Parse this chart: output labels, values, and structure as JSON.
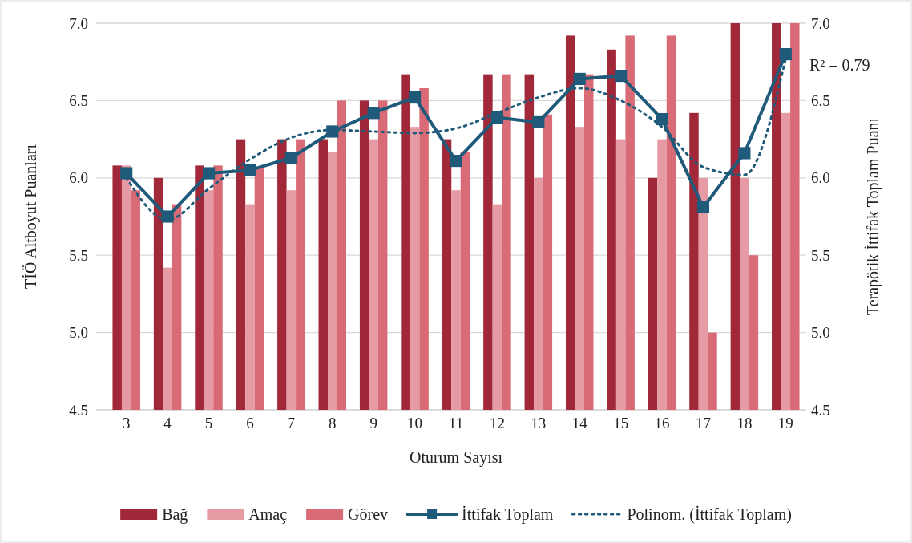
{
  "chart_data": {
    "type": "bar",
    "xlabel": "Oturum Sayısı",
    "ylabel": "TİÖ Altboyut Puanları",
    "y2label": "Terapötik İttifak Toplam Puanı",
    "categories": [
      "3",
      "4",
      "5",
      "6",
      "7",
      "8",
      "9",
      "10",
      "11",
      "12",
      "13",
      "14",
      "15",
      "16",
      "17",
      "18",
      "19"
    ],
    "series": [
      {
        "name": "Bağ",
        "color": "#a12838",
        "values": [
          6.08,
          6.0,
          6.08,
          6.25,
          6.25,
          6.25,
          6.5,
          6.67,
          6.25,
          6.67,
          6.67,
          6.92,
          6.83,
          6.0,
          6.42,
          7.0,
          7.0
        ]
      },
      {
        "name": "Amaç",
        "color": "#e69aa3",
        "values": [
          6.08,
          5.42,
          5.92,
          5.83,
          5.92,
          6.17,
          6.25,
          6.33,
          5.92,
          5.83,
          6.0,
          6.33,
          6.25,
          6.25,
          6.0,
          6.0,
          6.42
        ]
      },
      {
        "name": "Görev",
        "color": "#d96b77",
        "values": [
          5.92,
          5.83,
          6.08,
          6.07,
          6.25,
          6.5,
          6.5,
          6.58,
          6.17,
          6.67,
          6.41,
          6.67,
          6.92,
          6.92,
          5.0,
          5.5,
          7.0
        ]
      },
      {
        "name": "İttifak Toplam",
        "type": "line",
        "axis": "y2",
        "marker": "square",
        "line_style": "solid",
        "color": "#1f5a7a",
        "values": [
          6.03,
          5.75,
          6.03,
          6.05,
          6.13,
          6.3,
          6.42,
          6.52,
          6.11,
          6.39,
          6.36,
          6.64,
          6.66,
          6.38,
          5.81,
          6.16,
          6.8
        ]
      },
      {
        "name": "Polinom. (İttifak Toplam)",
        "type": "line",
        "axis": "y2",
        "marker": "none",
        "line_style": "dotted",
        "color": "#1f5a7a",
        "values": [
          6.0,
          5.73,
          5.93,
          6.12,
          6.26,
          6.31,
          6.3,
          6.29,
          6.32,
          6.42,
          6.52,
          6.58,
          6.5,
          6.33,
          6.07,
          6.02,
          6.77
        ]
      }
    ],
    "ylim": [
      4.5,
      7.0
    ],
    "yticks": [
      {
        "value": 4.5,
        "label": "4.5"
      },
      {
        "value": 5.0,
        "label": "5.0"
      },
      {
        "value": 5.5,
        "label": "5.5"
      },
      {
        "value": 6.0,
        "label": "6.0"
      },
      {
        "value": 6.5,
        "label": "6.5"
      },
      {
        "value": 7.0,
        "label": "7.0"
      }
    ],
    "y2lim": [
      4.5,
      7.0
    ],
    "y2ticks": [
      {
        "value": 4.5,
        "label": "4.5"
      },
      {
        "value": 5.0,
        "label": "5.0"
      },
      {
        "value": 5.5,
        "label": "5.5"
      },
      {
        "value": 6.0,
        "label": "6.0"
      },
      {
        "value": 6.5,
        "label": "6.5"
      },
      {
        "value": 7.0,
        "label": "7.0"
      }
    ],
    "annotations": [
      "R² = 0.79"
    ],
    "grid": "y",
    "legend": "bottom"
  }
}
